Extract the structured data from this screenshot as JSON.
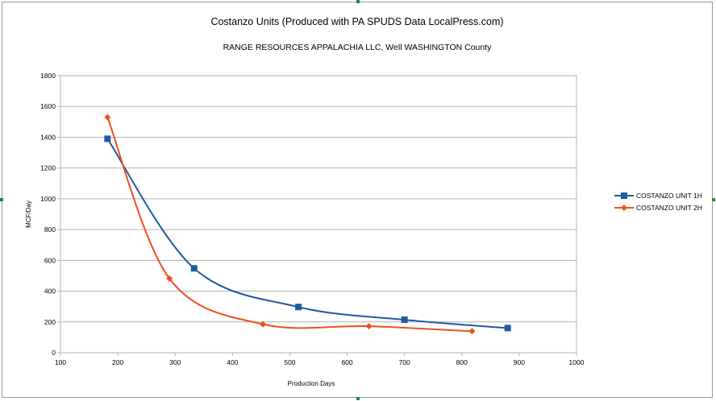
{
  "chart_data": {
    "type": "line",
    "title": "Costanzo Units (Produced with PA SPUDS Data LocalPress.com)",
    "subtitle": "RANGE RESOURCES APPALACHIA LLC, Well  WASHINGTON County",
    "xlabel": "Production Days",
    "ylabel": "MCF/Day",
    "xlim": [
      100,
      1000
    ],
    "ylim": [
      0,
      1800
    ],
    "x_ticks": [
      100,
      200,
      300,
      400,
      500,
      600,
      700,
      800,
      900,
      1000
    ],
    "y_ticks": [
      0,
      200,
      400,
      600,
      800,
      1000,
      1200,
      1400,
      1600,
      1800
    ],
    "grid": "horizontal",
    "legend": "right",
    "series": [
      {
        "name": "COSTANZO UNIT 1H",
        "color": "#1f5aa0",
        "marker": "square",
        "points": [
          {
            "x": 182,
            "y": 1390
          },
          {
            "x": 333,
            "y": 548
          },
          {
            "x": 515,
            "y": 297
          },
          {
            "x": 700,
            "y": 214
          },
          {
            "x": 880,
            "y": 160
          }
        ]
      },
      {
        "name": "COSTANZO UNIT 2H",
        "color": "#f04e1e",
        "marker": "diamond",
        "points": [
          {
            "x": 182,
            "y": 1530
          },
          {
            "x": 290,
            "y": 482
          },
          {
            "x": 453,
            "y": 185
          },
          {
            "x": 638,
            "y": 172
          },
          {
            "x": 818,
            "y": 139
          }
        ]
      }
    ]
  }
}
